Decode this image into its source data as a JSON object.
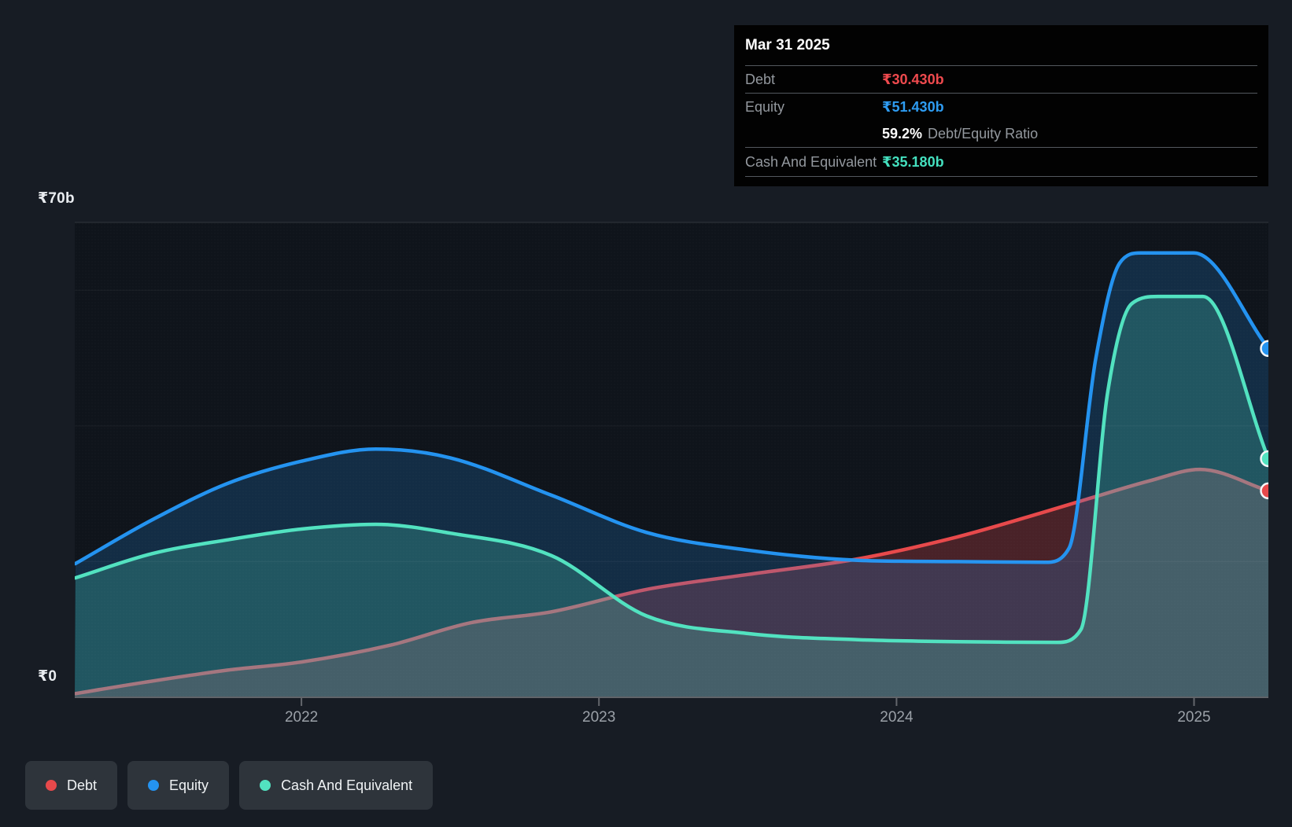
{
  "page": {
    "background": "#171c24"
  },
  "tooltip": {
    "date": "Mar 31 2025",
    "debt_label": "Debt",
    "debt_value": "₹30.430b",
    "equity_label": "Equity",
    "equity_value": "₹51.430b",
    "ratio_value": "59.2%",
    "ratio_label": "Debt/Equity Ratio",
    "cash_label": "Cash And Equivalent",
    "cash_value": "₹35.180b"
  },
  "legend": {
    "items": [
      {
        "label": "Debt",
        "color": "#e7494b"
      },
      {
        "label": "Equity",
        "color": "#2493f0"
      },
      {
        "label": "Cash And Equivalent",
        "color": "#52e2c0"
      }
    ]
  },
  "chart_data": {
    "type": "area",
    "x_axis": {
      "range": [
        2021.238,
        2025.25
      ],
      "ticks": [
        2022,
        2023,
        2024,
        2025
      ]
    },
    "y_axis": {
      "max_label": "₹70b",
      "zero_label": "₹0",
      "ylim": [
        0,
        70
      ],
      "gridline_values": [
        70,
        60,
        40,
        20
      ],
      "unit": "₹ billions"
    },
    "series": [
      {
        "name": "Debt",
        "color": "#e7494b",
        "fill": "rgba(231,73,79,0.27)",
        "points": [
          [
            2021.24,
            0.55
          ],
          [
            2021.5,
            2.4
          ],
          [
            2021.75,
            4.0
          ],
          [
            2022.0,
            5.2
          ],
          [
            2022.3,
            7.7
          ],
          [
            2022.57,
            11.0
          ],
          [
            2022.84,
            12.6
          ],
          [
            2023.16,
            15.9
          ],
          [
            2023.5,
            18.1
          ],
          [
            2023.87,
            20.4
          ],
          [
            2024.2,
            23.6
          ],
          [
            2024.48,
            27.1
          ],
          [
            2024.64,
            29.2
          ],
          [
            2024.85,
            31.9
          ],
          [
            2025.02,
            33.6
          ],
          [
            2025.25,
            30.43
          ]
        ],
        "last_value": 30.43
      },
      {
        "name": "Equity",
        "color": "#2493f0",
        "fill": "rgba(36,147,240,0.20)",
        "points": [
          [
            2021.24,
            19.7
          ],
          [
            2021.5,
            26.2
          ],
          [
            2021.75,
            31.5
          ],
          [
            2022.0,
            34.8
          ],
          [
            2022.25,
            36.6
          ],
          [
            2022.5,
            35.3
          ],
          [
            2022.84,
            29.8
          ],
          [
            2023.16,
            24.3
          ],
          [
            2023.5,
            21.7
          ],
          [
            2023.87,
            20.2
          ],
          [
            2024.2,
            20.0
          ],
          [
            2024.5,
            19.9
          ],
          [
            2024.58,
            22.0
          ],
          [
            2024.67,
            50.0
          ],
          [
            2024.75,
            64.0
          ],
          [
            2024.82,
            65.5
          ],
          [
            2025.0,
            65.5
          ],
          [
            2025.25,
            51.43
          ]
        ],
        "last_value": 51.43
      },
      {
        "name": "Cash And Equivalent",
        "color": "#52e2c0",
        "fill": "rgba(82,226,192,0.23)",
        "points": [
          [
            2021.24,
            17.6
          ],
          [
            2021.5,
            21.2
          ],
          [
            2021.75,
            23.2
          ],
          [
            2022.0,
            24.8
          ],
          [
            2022.25,
            25.5
          ],
          [
            2022.5,
            24.2
          ],
          [
            2022.84,
            20.9
          ],
          [
            2023.16,
            12.0
          ],
          [
            2023.5,
            9.4
          ],
          [
            2023.87,
            8.5
          ],
          [
            2024.2,
            8.2
          ],
          [
            2024.54,
            8.1
          ],
          [
            2024.62,
            10.0
          ],
          [
            2024.71,
            45.0
          ],
          [
            2024.79,
            58.0
          ],
          [
            2024.88,
            59.1
          ],
          [
            2025.03,
            59.1
          ],
          [
            2025.25,
            35.18
          ]
        ],
        "last_value": 35.18
      }
    ]
  }
}
